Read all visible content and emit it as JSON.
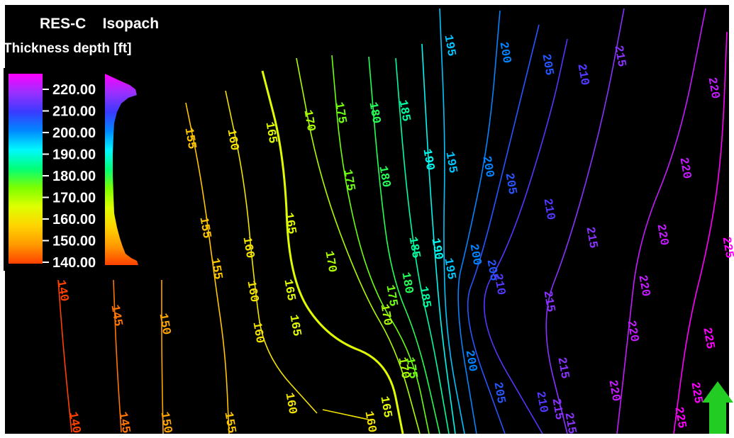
{
  "title": "RES-C    Isopach",
  "subtitle": "Thickness depth [ft]",
  "colors": {
    "background": "#000000",
    "frame": "#ffffff",
    "arrow": "#22cc22"
  },
  "chart_data": {
    "type": "contour",
    "title": "RES-C    Isopach",
    "colorbar": {
      "label": "Thickness depth [ft]",
      "ticks": [
        "220.00",
        "210.00",
        "200.00",
        "190.00",
        "180.00",
        "170.00",
        "160.00",
        "150.00",
        "140.00"
      ],
      "range": [
        140,
        225
      ],
      "colors": [
        "#ff4000",
        "#ff9a00",
        "#ffd400",
        "#dfff00",
        "#7dff00",
        "#00ff78",
        "#00f8ff",
        "#0088ff",
        "#3a3aff",
        "#9a30ff",
        "#ff00ff"
      ]
    },
    "contours": [
      {
        "level": 140,
        "labels": [
          "140",
          "140"
        ]
      },
      {
        "level": 145,
        "labels": [
          "145",
          "145"
        ]
      },
      {
        "level": 150,
        "labels": [
          "150",
          "150"
        ]
      },
      {
        "level": 155,
        "labels": [
          "155",
          "155",
          "155",
          "155"
        ]
      },
      {
        "level": 160,
        "labels": [
          "160",
          "160",
          "160",
          "160",
          "160",
          "160"
        ]
      },
      {
        "level": 165,
        "labels": [
          "165",
          "165",
          "165",
          "165",
          "165"
        ]
      },
      {
        "level": 170,
        "labels": [
          "170",
          "170",
          "170",
          "170"
        ]
      },
      {
        "level": 175,
        "labels": [
          "175",
          "175",
          "175",
          "175"
        ]
      },
      {
        "level": 180,
        "labels": [
          "180",
          "180",
          "180"
        ]
      },
      {
        "level": 185,
        "labels": [
          "185",
          "185",
          "185"
        ]
      },
      {
        "level": 190,
        "labels": [
          "190",
          "190"
        ]
      },
      {
        "level": 195,
        "labels": [
          "195",
          "195",
          "195"
        ]
      },
      {
        "level": 200,
        "labels": [
          "200",
          "200",
          "200",
          "200"
        ]
      },
      {
        "level": 205,
        "labels": [
          "205",
          "205",
          "205",
          "205"
        ]
      },
      {
        "level": 210,
        "labels": [
          "210",
          "210",
          "210",
          "210",
          "210"
        ]
      },
      {
        "level": 215,
        "labels": [
          "215",
          "215",
          "215",
          "215",
          "215",
          "215"
        ]
      },
      {
        "level": 220,
        "labels": [
          "220",
          "220",
          "220",
          "220",
          "220",
          "220"
        ]
      },
      {
        "level": 225,
        "labels": [
          "225",
          "225",
          "225",
          "225"
        ]
      }
    ],
    "north_arrow": true
  }
}
